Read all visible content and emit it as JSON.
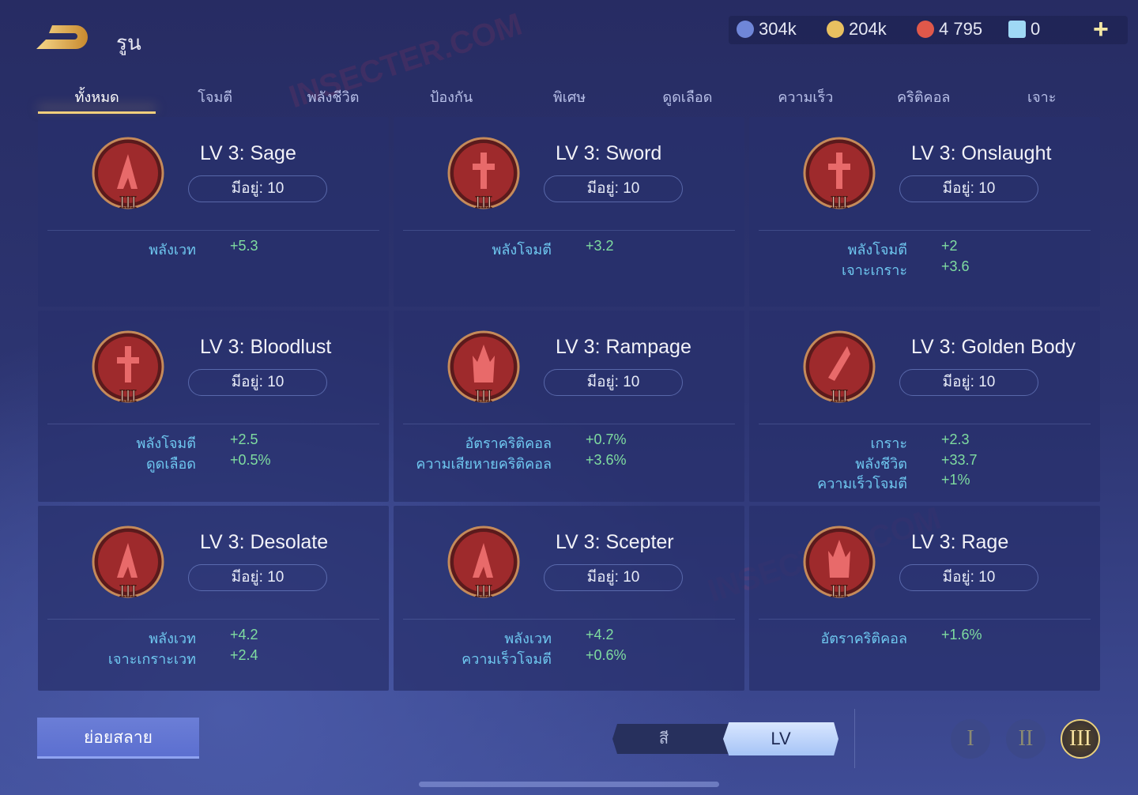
{
  "header": {
    "title": "รูน",
    "back_icon": "back-arrow-icon"
  },
  "resources": [
    {
      "icon": "blue-coin-icon",
      "color": "#6f86d8",
      "value": "304k"
    },
    {
      "icon": "gold-coin-icon",
      "color": "#e8c060",
      "value": "204k"
    },
    {
      "icon": "red-gem-icon",
      "color": "#e0584a",
      "value": "4 795"
    },
    {
      "icon": "rune-card-icon",
      "color": "#9fd8f5",
      "value": "0"
    }
  ],
  "add_label": "+",
  "tabs": [
    "ทั้งหมด",
    "โจมตี",
    "พลังชีวิต",
    "ป้องกัน",
    "พิเศษ",
    "ดูดเลือด",
    "ความเร็ว",
    "คริติคอล",
    "เจาะ"
  ],
  "active_tab": 0,
  "cards": [
    {
      "title": "LV 3: Sage",
      "owned": "มีอยู่: 10",
      "icon": "mage-rune-icon",
      "tier": "III",
      "stats": [
        {
          "label": "พลังเวท",
          "value": "+5.3"
        }
      ]
    },
    {
      "title": "LV 3: Sword",
      "owned": "มีอยู่: 10",
      "icon": "sword-rune-icon",
      "tier": "III",
      "stats": [
        {
          "label": "พลังโจมตี",
          "value": "+3.2"
        }
      ]
    },
    {
      "title": "LV 3: Onslaught",
      "owned": "มีอยู่: 10",
      "icon": "sword-rune-icon",
      "tier": "III",
      "stats": [
        {
          "label": "พลังโจมตี",
          "value": "+2"
        },
        {
          "label": "เจาะเกราะ",
          "value": "+3.6"
        }
      ]
    },
    {
      "title": "LV 3: Bloodlust",
      "owned": "มีอยู่: 10",
      "icon": "sword-rune-icon",
      "tier": "III",
      "stats": [
        {
          "label": "พลังโจมตี",
          "value": "+2.5"
        },
        {
          "label": "ดูดเลือด",
          "value": "+0.5%"
        }
      ]
    },
    {
      "title": "LV 3: Rampage",
      "owned": "มีอยู่: 10",
      "icon": "flame-rune-icon",
      "tier": "III",
      "stats": [
        {
          "label": "อัตราคริติคอล",
          "value": "+0.7%"
        },
        {
          "label": "ความเสียหายคริติคอล",
          "value": "+3.6%"
        }
      ]
    },
    {
      "title": "LV 3: Golden Body",
      "owned": "มีอยู่: 10",
      "icon": "blade-rune-icon",
      "tier": "III",
      "stats": [
        {
          "label": "เกราะ",
          "value": "+2.3"
        },
        {
          "label": "พลังชีวิต",
          "value": "+33.7"
        },
        {
          "label": "ความเร็วโจมตี",
          "value": "+1%"
        }
      ]
    },
    {
      "title": "LV 3: Desolate",
      "owned": "มีอยู่: 10",
      "icon": "mage-rune-icon",
      "tier": "III",
      "stats": [
        {
          "label": "พลังเวท",
          "value": "+4.2"
        },
        {
          "label": "เจาะเกราะเวท",
          "value": "+2.4"
        }
      ]
    },
    {
      "title": "LV 3: Scepter",
      "owned": "มีอยู่: 10",
      "icon": "mage-rune-icon",
      "tier": "III",
      "stats": [
        {
          "label": "พลังเวท",
          "value": "+4.2"
        },
        {
          "label": "ความเร็วโจมตี",
          "value": "+0.6%"
        }
      ]
    },
    {
      "title": "LV 3: Rage",
      "owned": "มีอยู่: 10",
      "icon": "flame-rune-icon",
      "tier": "III",
      "stats": [
        {
          "label": "อัตราคริติคอล",
          "value": "+1.6%"
        }
      ]
    }
  ],
  "footer": {
    "dismantle_label": "ย่อยสลาย",
    "sort_options": [
      "สี",
      "LV"
    ],
    "sort_selected": "LV",
    "tiers": [
      "I",
      "II",
      "III"
    ],
    "tier_selected": "III"
  },
  "watermarks": [
    "INSECTER.COM",
    "INSECTER.COM"
  ]
}
